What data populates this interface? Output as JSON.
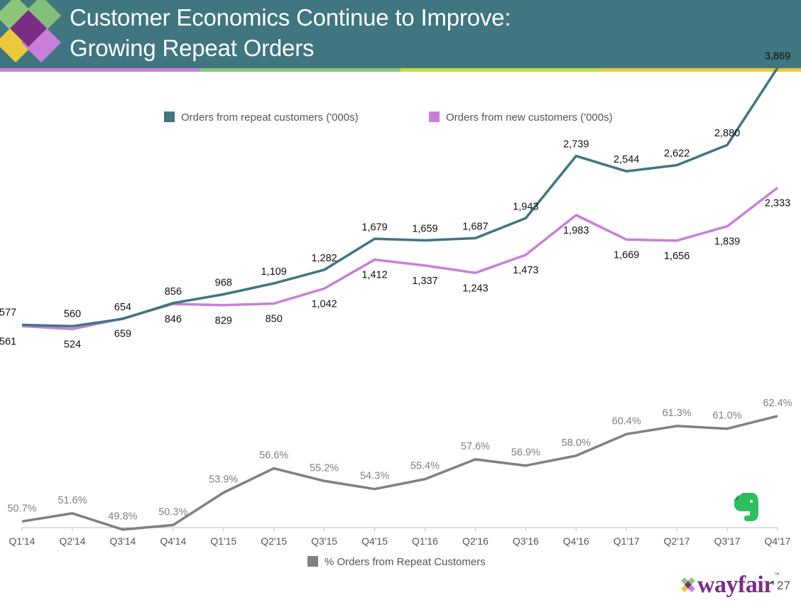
{
  "header": {
    "title_line1": "Customer Economics Continue to Improve:",
    "title_line2": "Growing Repeat Orders"
  },
  "chart_data": {
    "type": "line",
    "categories": [
      "Q1'14",
      "Q2'14",
      "Q3'14",
      "Q4'14",
      "Q1'15",
      "Q2'15",
      "Q3'15",
      "Q4'15",
      "Q1'16",
      "Q2'16",
      "Q3'16",
      "Q4'16",
      "Q1'17",
      "Q2'17",
      "Q3'17",
      "Q4'17"
    ],
    "series": [
      {
        "name": "Orders from repeat customers ('000s)",
        "color": "#3f7680",
        "values": [
          577,
          560,
          654,
          856,
          968,
          1109,
          1282,
          1679,
          1659,
          1687,
          1943,
          2739,
          2544,
          2622,
          2880,
          3869
        ],
        "labels": [
          "577",
          "560",
          "654",
          "856",
          "968",
          "1,109",
          "1,282",
          "1,679",
          "1,659",
          "1,687",
          "1,943",
          "2,739",
          "2,544",
          "2,622",
          "2,880",
          "3,869"
        ]
      },
      {
        "name": "Orders from new customers ('000s)",
        "color": "#c87fd8",
        "values": [
          561,
          524,
          659,
          846,
          829,
          850,
          1042,
          1412,
          1337,
          1243,
          1473,
          1983,
          1669,
          1656,
          1839,
          2333
        ],
        "labels": [
          "561",
          "524",
          "659",
          "846",
          "829",
          "850",
          "1,042",
          "1,412",
          "1,337",
          "1,243",
          "1,473",
          "1,983",
          "1,669",
          "1,656",
          "1,839",
          "2,333"
        ]
      },
      {
        "name": "% Orders from Repeat Customers",
        "color": "#808080",
        "values": [
          50.7,
          51.6,
          49.8,
          50.3,
          53.9,
          56.6,
          55.2,
          54.3,
          55.4,
          57.6,
          56.9,
          58.0,
          60.4,
          61.3,
          61.0,
          62.4
        ],
        "labels": [
          "50.7%",
          "51.6%",
          "49.8%",
          "50.3%",
          "53.9%",
          "56.6%",
          "55.2%",
          "54.3%",
          "55.4%",
          "57.6%",
          "56.9%",
          "58.0%",
          "60.4%",
          "61.3%",
          "61.0%",
          "62.4%"
        ]
      }
    ],
    "legend_top": [
      "Orders from repeat customers ('000s)",
      "Orders from new customers ('000s)"
    ],
    "legend_bottom": "% Orders from Repeat Customers",
    "orders_axis_range": [
      0,
      4200
    ],
    "percent_axis_range": [
      40,
      65
    ],
    "grid": false,
    "y_axis_visible": false
  },
  "footer": {
    "brand": "wayfair",
    "page_number": "27"
  },
  "colors": {
    "header_bg": "#3f7680",
    "brand_purple": "#7b2d83"
  },
  "icons": [
    "logo-diamond-icon",
    "evernote-elephant-icon",
    "wayfair-logo-icon"
  ]
}
